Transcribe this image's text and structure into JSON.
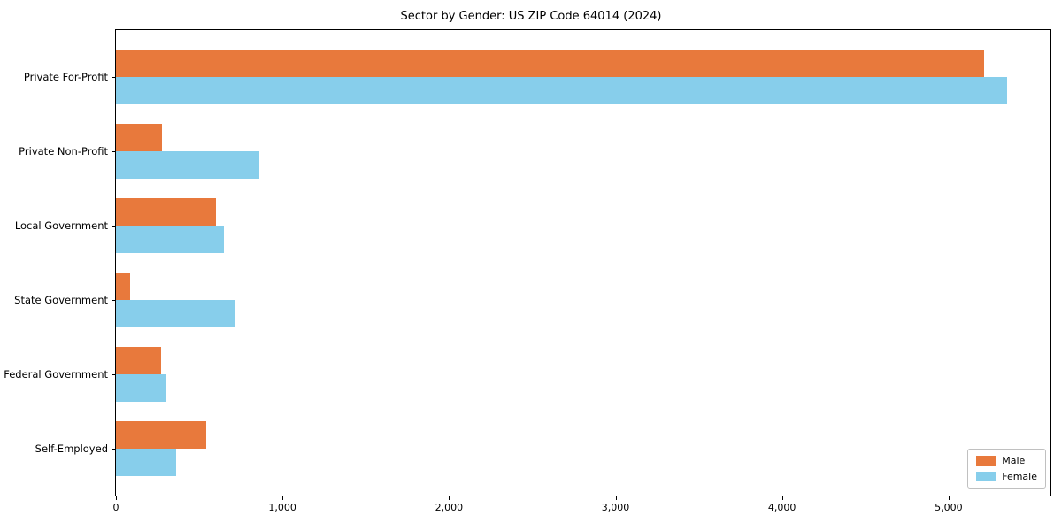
{
  "title": "Sector by Gender: US ZIP Code 64014 (2024)",
  "chart_data": {
    "type": "bar",
    "orientation": "horizontal",
    "title": "Sector by Gender: US ZIP Code 64014 (2024)",
    "xlabel": "",
    "ylabel": "",
    "categories": [
      "Private For-Profit",
      "Private Non-Profit",
      "Local Government",
      "State Government",
      "Federal Government",
      "Self-Employed"
    ],
    "series": [
      {
        "name": "Male",
        "color": "#E8793C",
        "values": [
          5215,
          275,
          600,
          85,
          270,
          540
        ]
      },
      {
        "name": "Female",
        "color": "#87CEEB",
        "values": [
          5350,
          860,
          650,
          715,
          305,
          360
        ]
      }
    ],
    "xlim": [
      0,
      5612
    ],
    "xticks": [
      0,
      1000,
      2000,
      3000,
      4000,
      5000
    ],
    "xtick_labels": [
      "0",
      "1,000",
      "2,000",
      "3,000",
      "4,000",
      "5,000"
    ],
    "legend_position": "lower right",
    "grid": false,
    "bar_color_male": "#E8793C",
    "bar_color_female": "#87CEEB"
  }
}
